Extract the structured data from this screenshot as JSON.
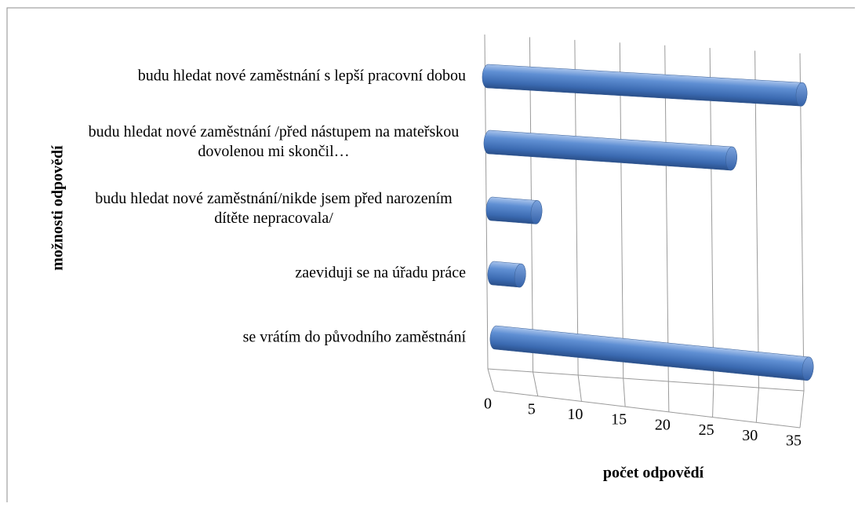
{
  "chart_data": {
    "type": "bar3d",
    "categories": [
      "budu hledat nové zaměstnání s lepší pracovní dobou",
      "budu hledat nové zaměstnání /před nástupem na mateřskou dovolenou mi skončil…",
      "budu hledat nové zaměstnání/nikde jsem před narozením dítěte nepracovala/",
      "zaeviduji se na úřadu práce",
      "se vrátím do původního  zaměstnání"
    ],
    "values": [
      35,
      27,
      5,
      3,
      35
    ],
    "color": "#4a7cc4",
    "xlabel": "počet odpovědí",
    "ylabel": "možnosti odpovědí",
    "xlim": [
      0,
      35
    ],
    "xticks": [
      0,
      5,
      10,
      15,
      20,
      25,
      30,
      35
    ],
    "grid": true
  }
}
